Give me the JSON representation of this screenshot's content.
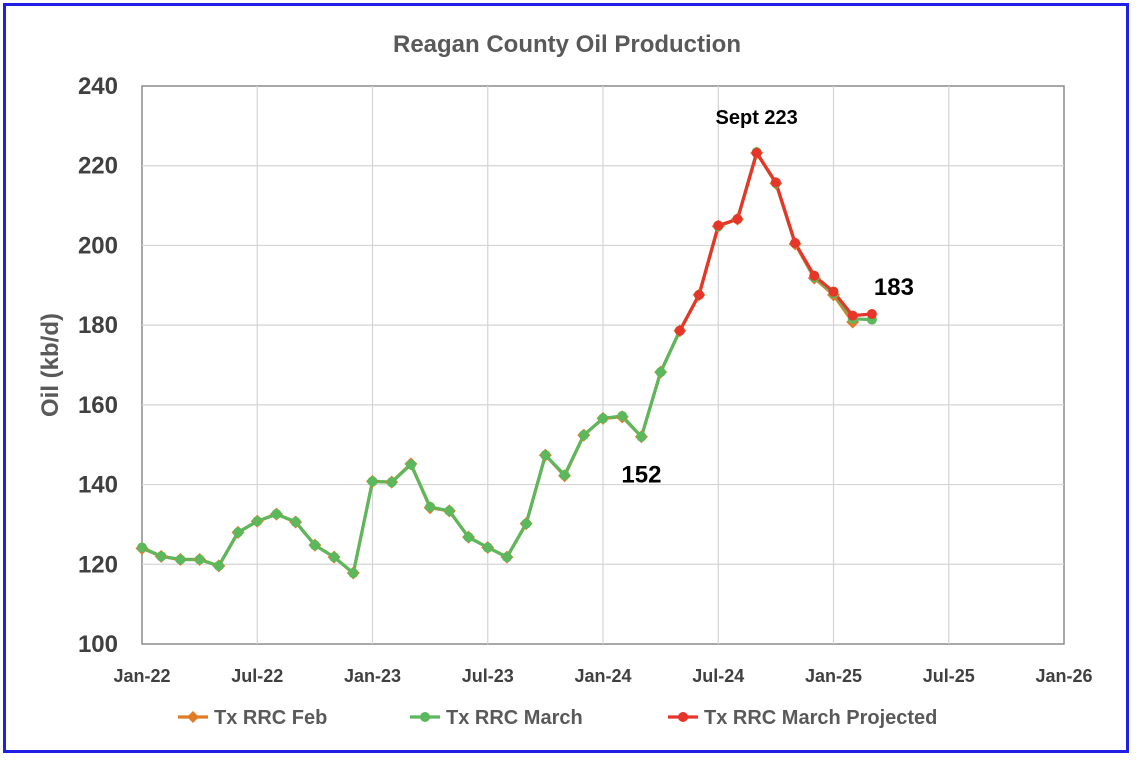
{
  "chart_data": {
    "type": "line",
    "title": "Reagan County Oil Production",
    "ylabel": "Oil (kb/d)",
    "xlabel": "",
    "ylim": [
      100,
      240
    ],
    "yticks": [
      100,
      120,
      140,
      160,
      180,
      200,
      220,
      240
    ],
    "xlim": [
      "2022-01",
      "2026-01"
    ],
    "xticks": [
      "Jan-22",
      "Jul-22",
      "Jan-23",
      "Jul-23",
      "Jan-24",
      "Jul-24",
      "Jan-25",
      "Jul-25",
      "Jan-26"
    ],
    "grid": true,
    "legend_position": "bottom",
    "series": [
      {
        "name": "Tx RRC Feb",
        "color": "#e07b26",
        "marker": "diamond",
        "x": [
          "2022-01",
          "2022-02",
          "2022-03",
          "2022-04",
          "2022-05",
          "2022-06",
          "2022-07",
          "2022-08",
          "2022-09",
          "2022-10",
          "2022-11",
          "2022-12",
          "2023-01",
          "2023-02",
          "2023-03",
          "2023-04",
          "2023-05",
          "2023-06",
          "2023-07",
          "2023-08",
          "2023-09",
          "2023-10",
          "2023-11",
          "2023-12",
          "2024-01",
          "2024-02",
          "2024-03",
          "2024-04",
          "2024-05",
          "2024-06",
          "2024-07",
          "2024-08",
          "2024-09",
          "2024-10",
          "2024-11",
          "2024-12",
          "2025-01",
          "2025-02"
        ],
        "values": [
          124.0,
          122.0,
          121.2,
          121.2,
          119.6,
          128.0,
          130.8,
          132.6,
          130.6,
          124.8,
          121.8,
          117.8,
          140.8,
          140.6,
          145.2,
          134.2,
          133.4,
          126.8,
          124.2,
          121.8,
          130.2,
          147.4,
          142.2,
          152.4,
          156.6,
          157.0,
          152.0,
          168.2,
          178.6,
          187.6,
          204.8,
          206.6,
          223.2,
          215.6,
          200.4,
          191.8,
          187.6,
          180.8
        ]
      },
      {
        "name": "Tx RRC March",
        "color": "#5cb85c",
        "marker": "circle",
        "x": [
          "2022-01",
          "2022-02",
          "2022-03",
          "2022-04",
          "2022-05",
          "2022-06",
          "2022-07",
          "2022-08",
          "2022-09",
          "2022-10",
          "2022-11",
          "2022-12",
          "2023-01",
          "2023-02",
          "2023-03",
          "2023-04",
          "2023-05",
          "2023-06",
          "2023-07",
          "2023-08",
          "2023-09",
          "2023-10",
          "2023-11",
          "2023-12",
          "2024-01",
          "2024-02",
          "2024-03",
          "2024-04",
          "2024-05",
          "2024-06",
          "2024-07",
          "2024-08",
          "2024-09",
          "2024-10",
          "2024-11",
          "2024-12",
          "2025-01",
          "2025-02",
          "2025-03"
        ],
        "values": [
          124.2,
          122.0,
          121.2,
          121.2,
          119.6,
          128.0,
          130.8,
          132.6,
          130.6,
          124.8,
          121.8,
          117.8,
          140.8,
          140.6,
          145.0,
          134.4,
          133.4,
          126.8,
          124.2,
          121.8,
          130.2,
          147.4,
          142.4,
          152.4,
          156.6,
          157.2,
          152.0,
          168.2,
          178.6,
          187.6,
          204.8,
          206.6,
          223.4,
          215.6,
          200.6,
          192.0,
          188.0,
          181.6,
          181.4
        ]
      },
      {
        "name": "Tx RRC March Projected",
        "color": "#e8352a",
        "marker": "circle",
        "x": [
          "2024-05",
          "2024-06",
          "2024-07",
          "2024-08",
          "2024-09",
          "2024-10",
          "2024-11",
          "2024-12",
          "2025-01",
          "2025-02",
          "2025-03"
        ],
        "values": [
          178.6,
          187.6,
          205.0,
          206.6,
          223.2,
          215.8,
          200.6,
          192.4,
          188.4,
          182.4,
          182.8
        ]
      }
    ],
    "annotations": [
      {
        "text": "Sept 223",
        "x": "2024-09",
        "y": 223
      },
      {
        "text": "183",
        "x": "2025-03",
        "y": 183
      },
      {
        "text": "152",
        "x": "2024-03",
        "y": 152
      }
    ]
  }
}
